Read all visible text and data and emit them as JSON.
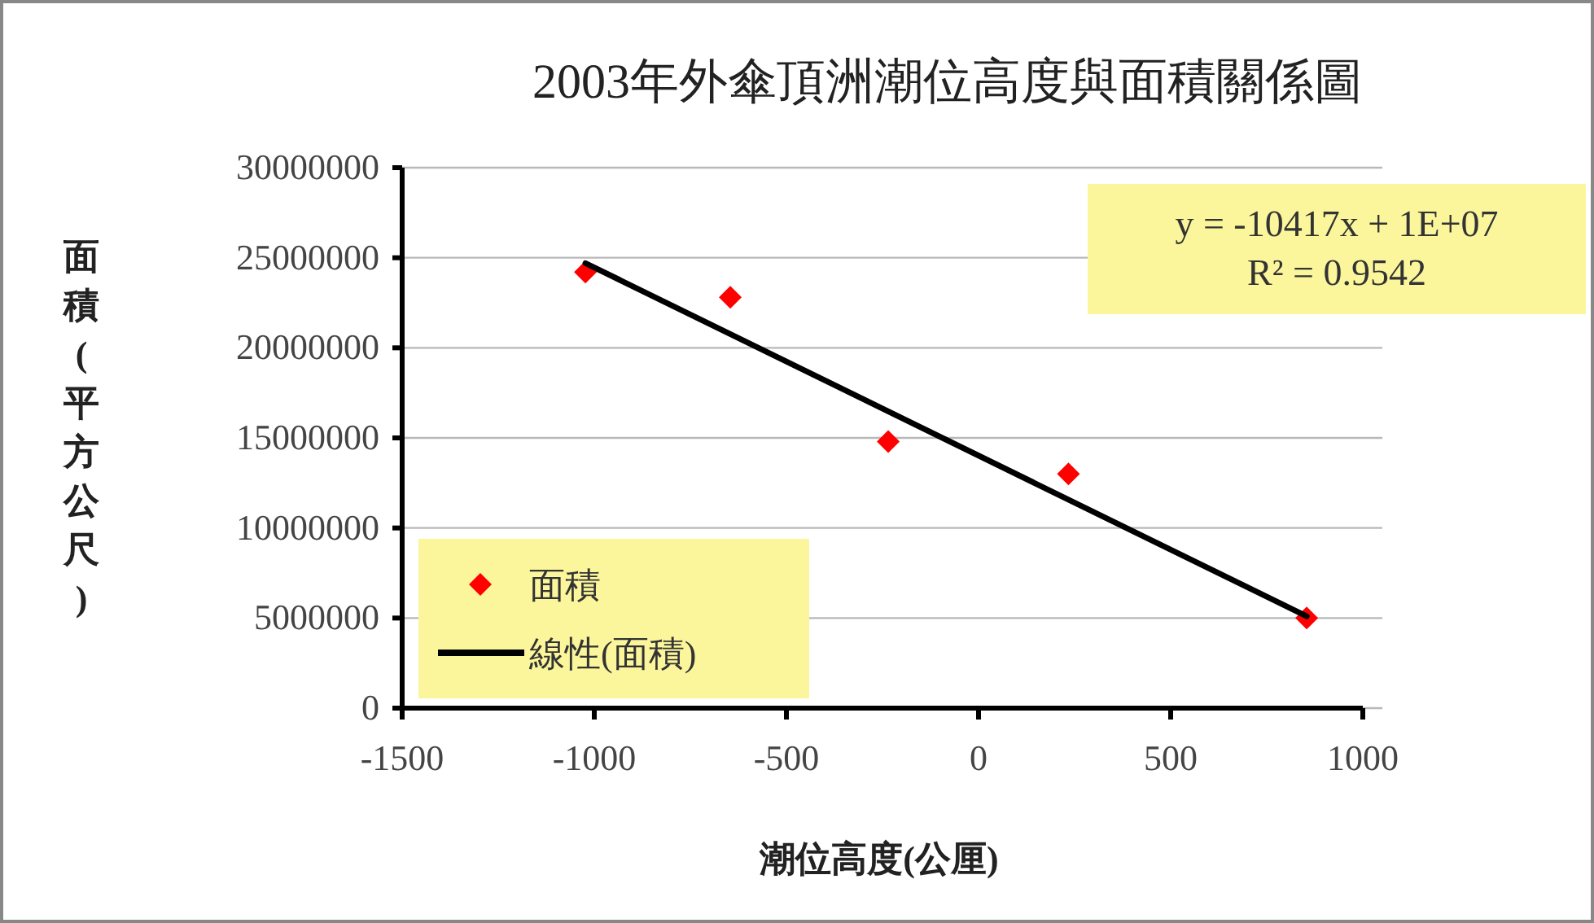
{
  "chart_data": {
    "type": "scatter",
    "title": "2003年外傘頂洲潮位高度與面積關係圖",
    "xlabel": "潮位高度(公厘)",
    "ylabel": "面積(平方公尺)",
    "series": [
      {
        "name": "面積",
        "color": "#ff0000",
        "marker": "diamond",
        "x": [
          -1023,
          -646,
          -235,
          234,
          854
        ],
        "values": [
          24200000,
          22800000,
          14800000,
          13000000,
          5000000
        ]
      },
      {
        "name": "線性(面積)",
        "type": "line",
        "color": "#000000",
        "line_style": "solid",
        "x": [
          -1023,
          854
        ],
        "values": [
          24700000,
          5100000
        ]
      }
    ],
    "xlim": [
      -1500,
      1000
    ],
    "xticks": [
      -1500,
      -1000,
      -500,
      0,
      500,
      1000
    ],
    "ylim": [
      0,
      30000000
    ],
    "yticks": [
      0,
      5000000,
      10000000,
      15000000,
      20000000,
      25000000,
      30000000
    ],
    "grid": "y",
    "legend": "bottom left",
    "annotations": [
      "y = -10417x + 1E+07",
      "R² = 0.9542"
    ]
  }
}
